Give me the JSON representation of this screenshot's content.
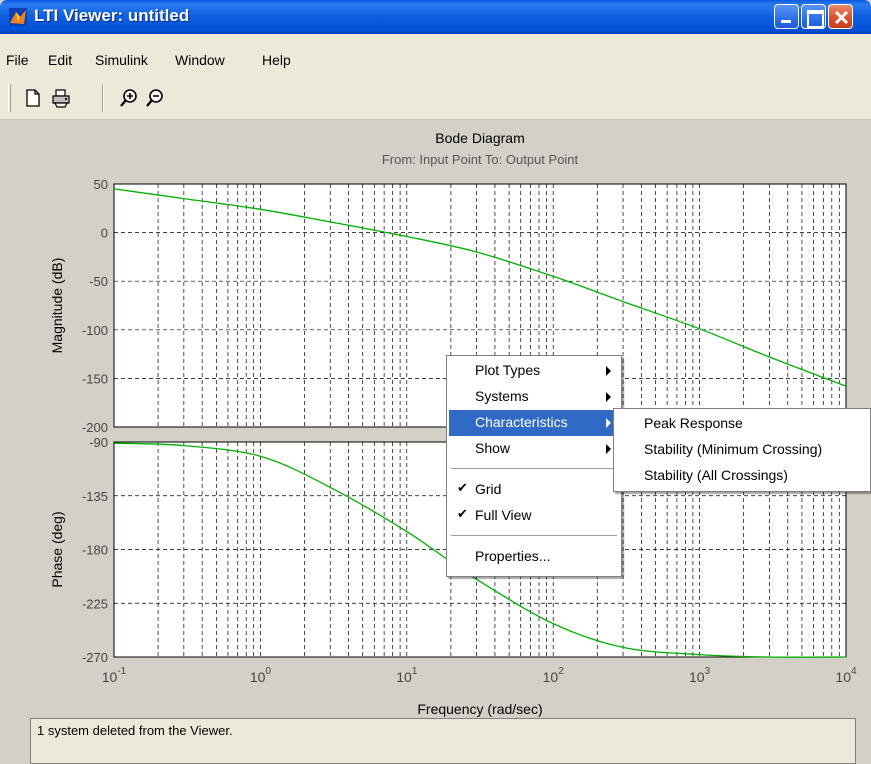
{
  "window": {
    "title": "LTI Viewer: untitled"
  },
  "menu": {
    "items": [
      "File",
      "Edit",
      "Simulink",
      "Window",
      "Help"
    ]
  },
  "toolbar": {
    "icons": [
      "new-file-icon",
      "print-icon",
      "zoom-in-icon",
      "zoom-out-icon"
    ]
  },
  "plot": {
    "title": "Bode Diagram",
    "subtitle": "From: Input Point  To: Output Point",
    "xlabel": "Frequency  (rad/sec)"
  },
  "chart_data": {
    "type": "line",
    "xscale": "log",
    "xlim": [
      0.1,
      10000
    ],
    "x_tick_labels": [
      {
        "base": "10",
        "exp": "-1"
      },
      {
        "base": "10",
        "exp": "0"
      },
      {
        "base": "10",
        "exp": "1"
      },
      {
        "base": "10",
        "exp": "2"
      },
      {
        "base": "10",
        "exp": "3"
      },
      {
        "base": "10",
        "exp": "4"
      }
    ],
    "grid": true,
    "panels": [
      {
        "ylabel": "Magnitude (dB)",
        "ylim": [
          -200,
          50
        ],
        "yticks": [
          "50",
          "0",
          "-50",
          "-100",
          "-150",
          "-200"
        ],
        "series": [
          {
            "color": "#00b000",
            "x": [
              0.1,
              0.3,
              1,
              3,
              10,
              30,
              100,
              300,
              1000,
              3000,
              10000
            ],
            "y": [
              45,
              35,
              24,
              11,
              -4,
              -20,
              -45,
              -71,
              -99,
              -128,
              -158
            ]
          }
        ]
      },
      {
        "ylabel": "Phase (deg)",
        "ylim": [
          -270,
          -90
        ],
        "yticks": [
          "-90",
          "-135",
          "-180",
          "-225",
          "-270"
        ],
        "series": [
          {
            "color": "#00b000",
            "x": [
              0.1,
              0.3,
              1,
              3,
              10,
              30,
              100,
              300,
              1000,
              3000,
              10000
            ],
            "y": [
              -91,
              -93,
              -102,
              -128,
              -165,
              -205,
              -242,
              -262,
              -268,
              -270,
              -270
            ]
          }
        ]
      }
    ]
  },
  "context_menu": {
    "items": [
      {
        "label": "Plot Types",
        "submenu": true,
        "checked": false
      },
      {
        "label": "Systems",
        "submenu": true,
        "checked": false
      },
      {
        "label": "Characteristics",
        "submenu": true,
        "checked": false,
        "highlighted": true
      },
      {
        "label": "Show",
        "submenu": true,
        "checked": false
      },
      {
        "label": "Grid",
        "submenu": false,
        "checked": true
      },
      {
        "label": "Full View",
        "submenu": false,
        "checked": true
      },
      {
        "label": "Properties...",
        "submenu": false,
        "checked": false
      }
    ],
    "check_glyph": "✔"
  },
  "characteristics_submenu": {
    "items": [
      "Peak Response",
      "Stability (Minimum Crossing)",
      "Stability (All Crossings)"
    ]
  },
  "status": {
    "text": "1 system deleted from the Viewer."
  },
  "colors": {
    "title_bar": "#0d5fe0",
    "menu_highlight": "#316ac5",
    "curve": "#00b000"
  }
}
